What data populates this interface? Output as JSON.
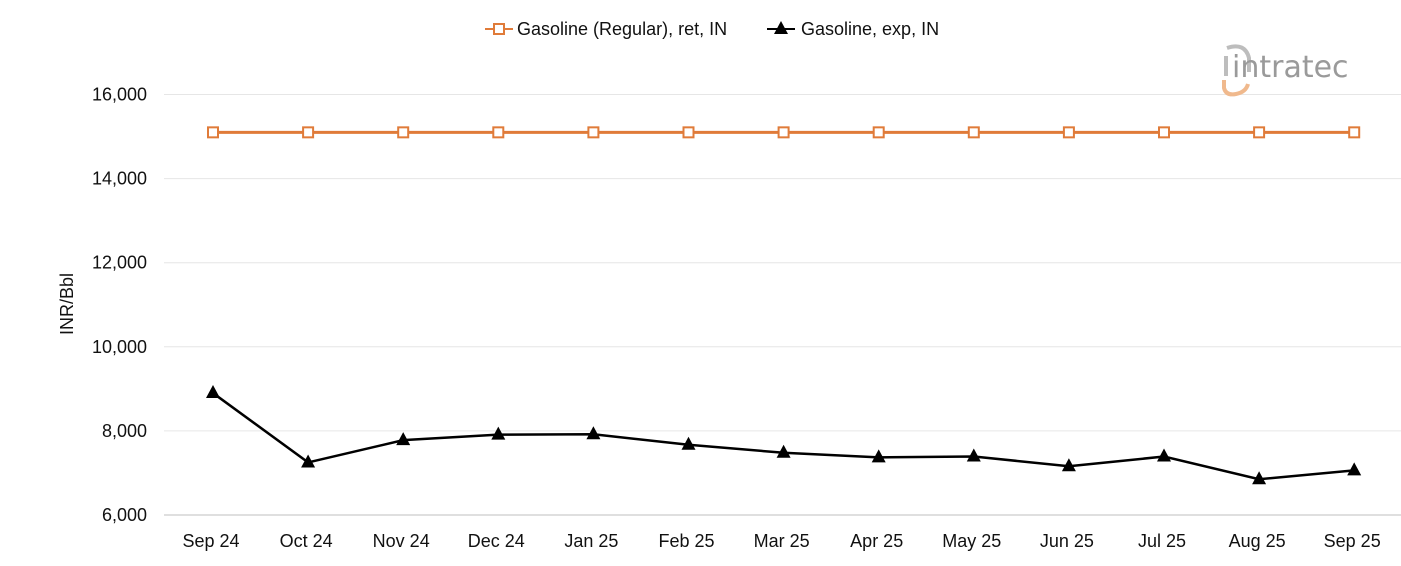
{
  "logo": {
    "text": "intratec"
  },
  "chart_data": {
    "type": "line",
    "ylabel": "INR/Bbl",
    "xlabel": "",
    "ylim": [
      6000,
      16500
    ],
    "yticks": [
      6000,
      8000,
      10000,
      12000,
      14000,
      16000
    ],
    "ytick_labels": [
      "6,000",
      "8,000",
      "10,000",
      "12,000",
      "14,000",
      "16,000"
    ],
    "grid": true,
    "legend_position": "top-center",
    "categories": [
      "Sep 24",
      "Oct 24",
      "Nov 24",
      "Dec 24",
      "Jan 25",
      "Feb 25",
      "Mar 25",
      "Apr 25",
      "May 25",
      "Jun 25",
      "Jul 25",
      "Aug 25",
      "Sep 25"
    ],
    "series": [
      {
        "name": "Gasoline (Regular), ret, IN",
        "color": "#e07b39",
        "marker": "square-open",
        "values": [
          15100,
          15100,
          15100,
          15100,
          15100,
          15100,
          15100,
          15100,
          15100,
          15100,
          15100,
          15100,
          15100
        ]
      },
      {
        "name": "Gasoline, exp, IN",
        "color": "#000000",
        "marker": "triangle",
        "values": [
          8900,
          7250,
          7780,
          7910,
          7920,
          7670,
          7480,
          7370,
          7390,
          7160,
          7390,
          6850,
          7060
        ]
      }
    ]
  }
}
